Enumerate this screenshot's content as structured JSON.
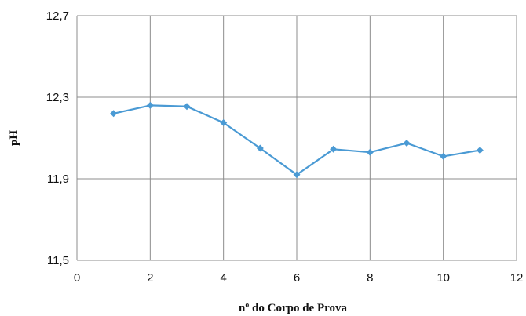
{
  "chart_data": {
    "type": "scatter",
    "title": "",
    "xlabel": "nº do Corpo de Prova",
    "ylabel": "pH",
    "xlim": [
      0,
      12
    ],
    "ylim": [
      11.5,
      12.7
    ],
    "x_ticks": [
      0,
      2,
      4,
      6,
      8,
      10,
      12
    ],
    "x_tick_labels": [
      "0",
      "2",
      "4",
      "6",
      "8",
      "10",
      "12"
    ],
    "y_ticks": [
      11.5,
      11.9,
      12.3,
      12.7
    ],
    "y_tick_labels": [
      "11,5",
      "11,9",
      "12,3",
      "12,7"
    ],
    "grid": true,
    "legend": "none",
    "line_color": "#4a9ad4",
    "grid_color": "#8c8c8c",
    "series": [
      {
        "x": [
          1,
          2,
          3,
          4,
          5,
          6,
          7,
          8,
          9,
          10,
          11
        ],
        "y": [
          12.22,
          12.26,
          12.255,
          12.175,
          12.05,
          11.92,
          12.045,
          12.03,
          12.075,
          12.01,
          12.04
        ]
      }
    ]
  }
}
